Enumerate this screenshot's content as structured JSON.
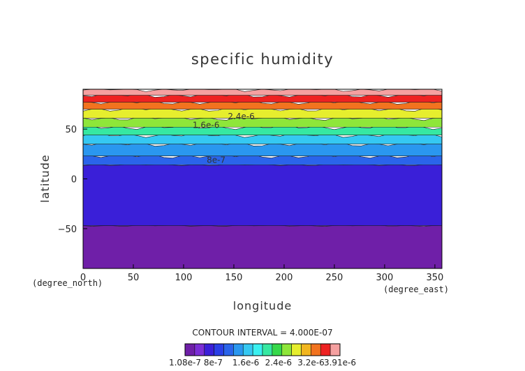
{
  "chart_data": {
    "type": "heatmap",
    "title": "specific humidity",
    "xlabel": "longitude",
    "ylabel": "latitude",
    "x_unit_label": "(degree_east)",
    "y_unit_label": "(degree_north)",
    "xlim": [
      0,
      357
    ],
    "ylim": [
      -90,
      90
    ],
    "x_ticks": [
      0,
      50,
      100,
      150,
      200,
      250,
      300,
      350
    ],
    "y_ticks": [
      -50,
      0,
      50
    ],
    "contour_interval_text": "CONTOUR INTERVAL = 4.000E-07",
    "contour_labels": [
      {
        "text": "2.4e-6",
        "lon": 144,
        "lat": 60
      },
      {
        "text": "1.6e-6",
        "lon": 109,
        "lat": 51
      },
      {
        "text": "8e-7",
        "lon": 123,
        "lat": 16
      }
    ],
    "colorbar": {
      "levels": 16,
      "tick_labels": [
        "1.08e-7",
        "8e-7",
        "1.6e-6",
        "2.4e-6",
        "3.2e-6",
        "3.91e-6"
      ],
      "colors": [
        "#6f1fa8",
        "#7b2ed6",
        "#3a1fd8",
        "#2a3fe6",
        "#2a64ea",
        "#2a97ef",
        "#35c8f2",
        "#3af0f0",
        "#36e8a2",
        "#36d84a",
        "#8ee63a",
        "#e6ee2e",
        "#f2b61f",
        "#f2731f",
        "#ee2222",
        "#f5a0a0"
      ]
    },
    "bands": [
      {
        "lat_from": -90,
        "lat_to": -47,
        "value": 1.5e-07
      },
      {
        "lat_from": -47,
        "lat_to": 14,
        "value": 6e-07
      },
      {
        "lat_from": 14,
        "lat_to": 23,
        "value": 1.1e-06
      },
      {
        "lat_from": 23,
        "lat_to": 35,
        "value": 1.4e-06
      },
      {
        "lat_from": 35,
        "lat_to": 44,
        "value": 1.7e-06
      },
      {
        "lat_from": 44,
        "lat_to": 52,
        "value": 2.1e-06
      },
      {
        "lat_from": 52,
        "lat_to": 61,
        "value": 2.5e-06
      },
      {
        "lat_from": 61,
        "lat_to": 70,
        "value": 2.9e-06
      },
      {
        "lat_from": 70,
        "lat_to": 77,
        "value": 3.3e-06
      },
      {
        "lat_from": 77,
        "lat_to": 84,
        "value": 3.6e-06
      },
      {
        "lat_from": 84,
        "lat_to": 90,
        "value": 3.8e-06
      }
    ]
  }
}
